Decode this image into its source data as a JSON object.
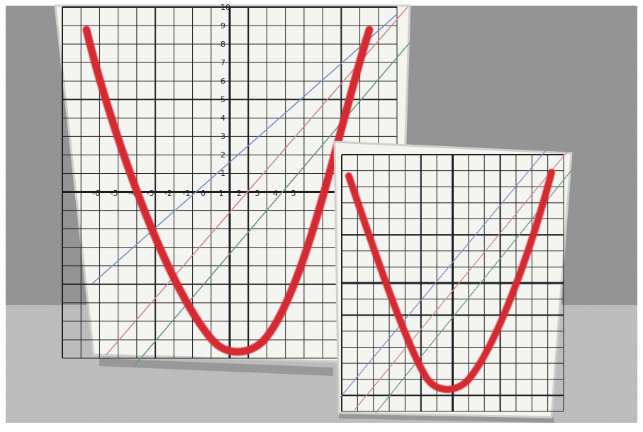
{
  "colors": {
    "background_stone": "#9a9a9a",
    "floor_stone": "#c4c4c4",
    "board": "#f4f4f2",
    "grid_line": "#1e1e1e",
    "curve": "#d52a30",
    "guide_blue": "#7b8fc4",
    "guide_red": "#c98a8a",
    "guide_green": "#6b9a7a"
  },
  "large_board": {
    "x_tick_labels": [
      "-6",
      "-5",
      "-4",
      "-3",
      "-2",
      "-1",
      "0",
      "1",
      "2",
      "3",
      "4",
      "5"
    ],
    "y_tick_labels": [
      "10",
      "9",
      "8",
      "7",
      "6",
      "5",
      "4",
      "3",
      "2",
      "1"
    ],
    "curve": "red yarn parabola (upward)"
  },
  "small_board": {
    "curve": "red yarn parabola (upward)"
  }
}
